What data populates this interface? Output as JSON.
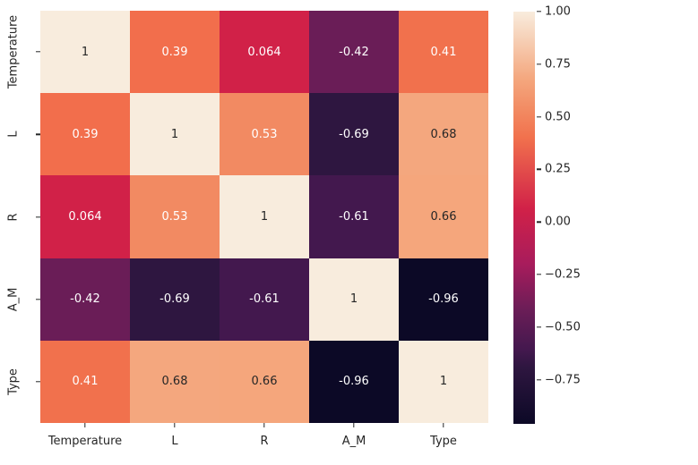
{
  "chart_data": {
    "type": "heatmap",
    "title": "",
    "xlabel": "",
    "ylabel": "",
    "categories": [
      "Temperature",
      "L",
      "R",
      "A_M",
      "Type"
    ],
    "x_tick_labels": [
      "Temperature",
      "L",
      "R",
      "A_M",
      "Type"
    ],
    "y_tick_labels": [
      "Temperature",
      "L",
      "R",
      "A_M",
      "Type"
    ],
    "matrix": [
      [
        1,
        0.39,
        0.064,
        -0.42,
        0.41
      ],
      [
        0.39,
        1,
        0.53,
        -0.69,
        0.68
      ],
      [
        0.064,
        0.53,
        1,
        -0.61,
        0.66
      ],
      [
        -0.42,
        -0.69,
        -0.61,
        1,
        -0.96
      ],
      [
        0.41,
        0.68,
        0.66,
        -0.96,
        1
      ]
    ],
    "cell_labels": [
      [
        "1",
        "0.39",
        "0.064",
        "-0.42",
        "0.41"
      ],
      [
        "0.39",
        "1",
        "0.53",
        "-0.69",
        "0.68"
      ],
      [
        "0.064",
        "0.53",
        "1",
        "-0.61",
        "0.66"
      ],
      [
        "-0.42",
        "-0.69",
        "-0.61",
        "1",
        "-0.96"
      ],
      [
        "0.41",
        "0.68",
        "0.66",
        "-0.96",
        "1"
      ]
    ],
    "cell_colors": [
      [
        "#f8ecdd",
        "#f26e4c",
        "#d12148",
        "#6a1d57",
        "#f1714d"
      ],
      [
        "#f26e4c",
        "#f8ecdd",
        "#f28a62",
        "#2e1640",
        "#f4a77e"
      ],
      [
        "#d12148",
        "#f28a62",
        "#f8ecdd",
        "#43184e",
        "#f5a67c"
      ],
      [
        "#6a1d57",
        "#2e1640",
        "#43184e",
        "#f8ecdd",
        "#0c0926"
      ],
      [
        "#f1714d",
        "#f4a77e",
        "#f5a67c",
        "#0c0926",
        "#f8ecdd"
      ]
    ],
    "cell_text_tone": [
      [
        "dark",
        "light",
        "light",
        "light",
        "light"
      ],
      [
        "light",
        "dark",
        "light",
        "light",
        "dark"
      ],
      [
        "light",
        "light",
        "dark",
        "light",
        "dark"
      ],
      [
        "light",
        "light",
        "light",
        "dark",
        "light"
      ],
      [
        "light",
        "dark",
        "dark",
        "light",
        "dark"
      ]
    ],
    "colors": {
      "background": "#ffffff",
      "tick_text": "#262626",
      "annot_dark": "#262626",
      "annot_light": "#ffffff",
      "colormap_name": "rocket"
    },
    "colorbar": {
      "position": "right",
      "vmin": -0.96,
      "vmax": 1.0,
      "tick_labels": [
        "1.00",
        "0.75",
        "0.50",
        "0.25",
        "0.00",
        "−0.25",
        "−0.50",
        "−0.75"
      ],
      "tick_values": [
        1.0,
        0.75,
        0.5,
        0.25,
        0.0,
        -0.25,
        -0.5,
        -0.75
      ],
      "gradient_stops": [
        {
          "pct": 0,
          "color": "#f8ecdd"
        },
        {
          "pct": 16.33,
          "color": "#f4a77e"
        },
        {
          "pct": 23.98,
          "color": "#f28a62"
        },
        {
          "pct": 30.6,
          "color": "#f1714d"
        },
        {
          "pct": 47.76,
          "color": "#d12148"
        },
        {
          "pct": 61.2,
          "color": "#a81c5c"
        },
        {
          "pct": 72.45,
          "color": "#6a1d57"
        },
        {
          "pct": 82.14,
          "color": "#43184e"
        },
        {
          "pct": 86.2,
          "color": "#2e1640"
        },
        {
          "pct": 100,
          "color": "#0c0926"
        }
      ]
    },
    "layout": {
      "grid": "off",
      "legend": "none",
      "annotations": "on"
    }
  }
}
